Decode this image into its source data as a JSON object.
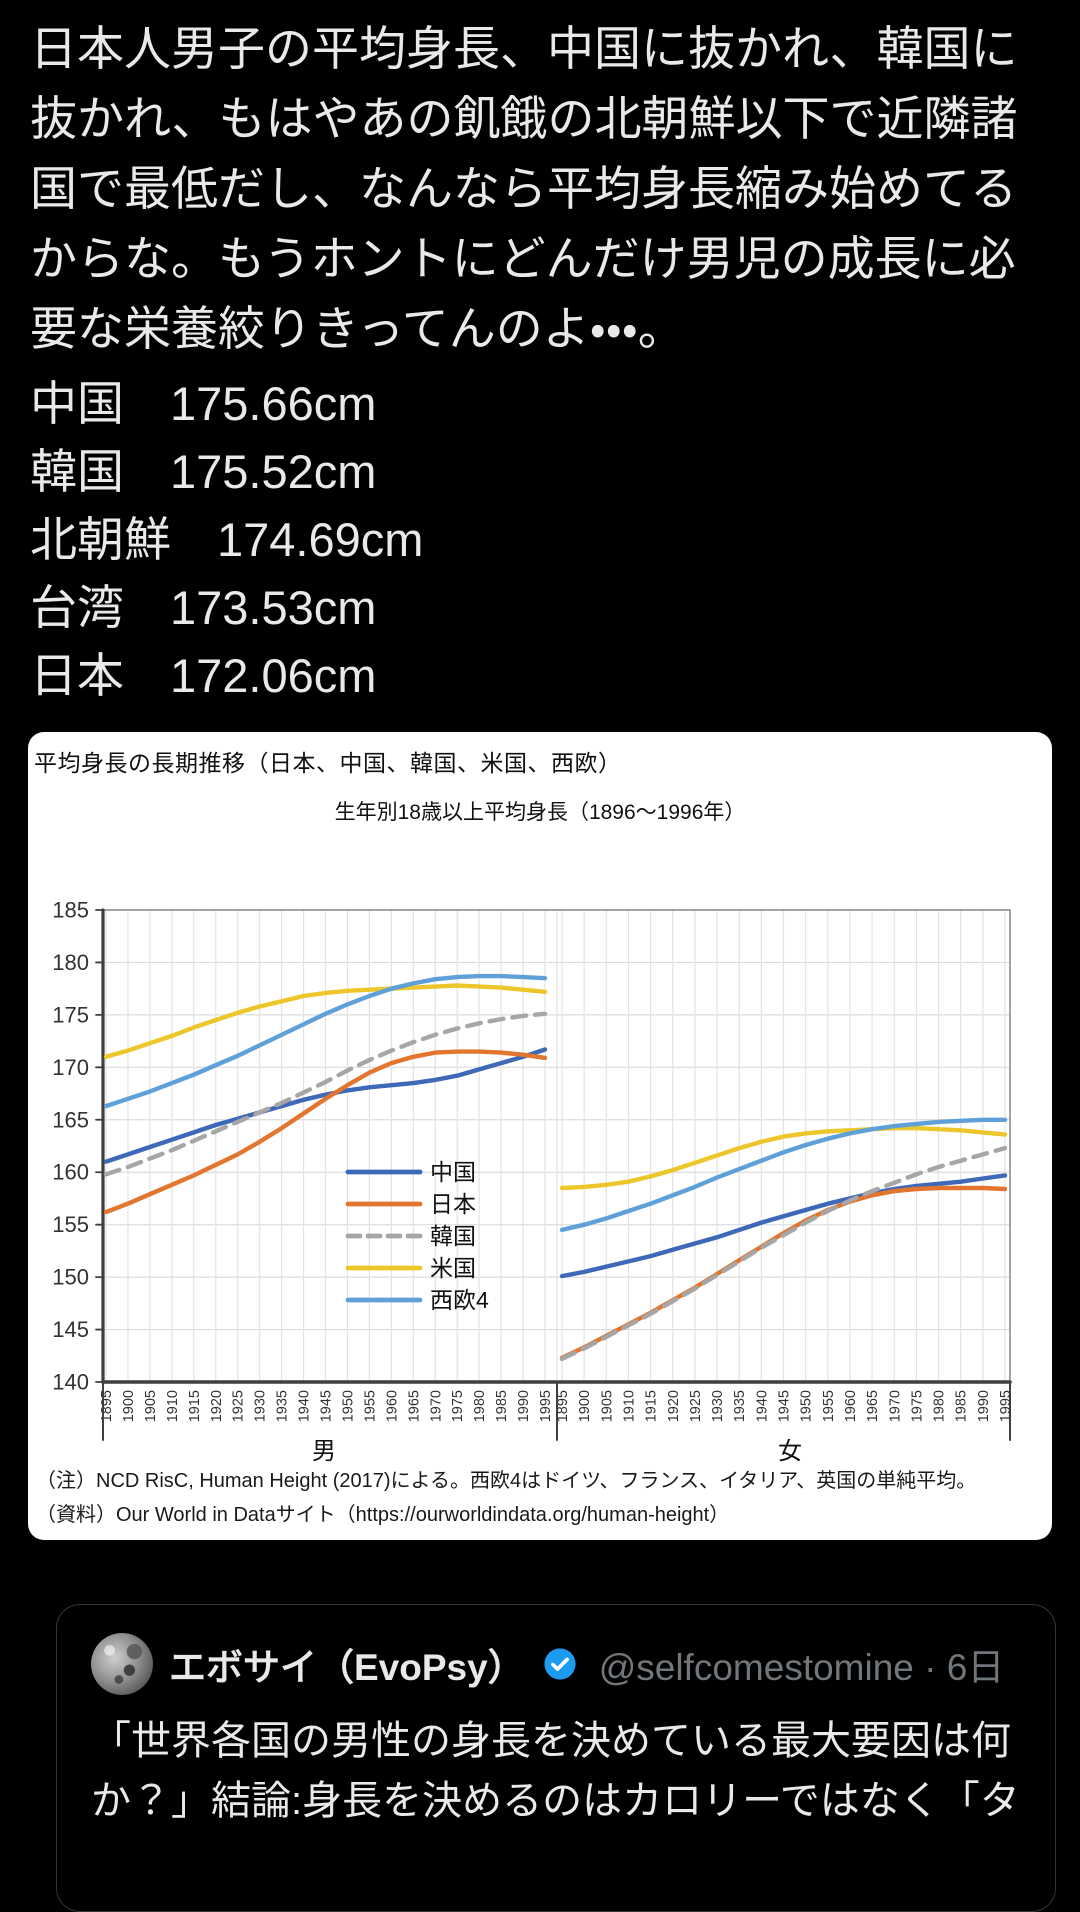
{
  "main_tweet": {
    "text": "日本人男子の平均身長、中国に抜かれ、韓国に抜かれ、もはやあの飢餓の北朝鮮以下で近隣諸国で最低だし、なんなら平均身長縮み始めてるからな。もうホントにどんだけ男児の成長に必要な栄養絞りきってんのよ・・・。",
    "height_list": [
      {
        "country": "中国",
        "value": "175.66cm"
      },
      {
        "country": "韓国",
        "value": "175.52cm"
      },
      {
        "country": "北朝鮮",
        "value": "174.69cm"
      },
      {
        "country": "台湾",
        "value": "173.53cm"
      },
      {
        "country": "日本",
        "value": "172.06cm"
      }
    ]
  },
  "chart": {
    "card_title": "平均身長の長期推移（日本、中国、韓国、米国、西欧）",
    "note1": "（注）NCD RisC, Human Height (2017)による。西欧4はドイツ、フランス、イタリア、英国の単純平均。",
    "note2": "（資料）Our World in Dataサイト（https://ourworldindata.org/human-height）"
  },
  "chart_data": {
    "type": "line",
    "title": "生年別18歳以上平均身長（1896～1996年）",
    "ylim": [
      140,
      185
    ],
    "ytick_step": 5,
    "grid": true,
    "legend_position": "inside-men-panel-lower-center",
    "x_years": [
      1895,
      1900,
      1905,
      1910,
      1915,
      1920,
      1925,
      1930,
      1935,
      1940,
      1945,
      1950,
      1955,
      1960,
      1965,
      1970,
      1975,
      1980,
      1985,
      1990,
      1995
    ],
    "panels": [
      {
        "label": "男",
        "series": [
          {
            "name": "中国",
            "color": "#3E68B8",
            "dash": false,
            "values": [
              161.0,
              161.7,
              162.4,
              163.1,
              163.8,
              164.5,
              165.1,
              165.7,
              166.3,
              166.9,
              167.4,
              167.8,
              168.1,
              168.3,
              168.5,
              168.8,
              169.2,
              169.8,
              170.4,
              171.0,
              171.7
            ]
          },
          {
            "name": "日本",
            "color": "#E2762E",
            "dash": false,
            "values": [
              156.2,
              157.0,
              157.9,
              158.8,
              159.7,
              160.7,
              161.7,
              162.9,
              164.2,
              165.6,
              167.0,
              168.3,
              169.5,
              170.4,
              171.0,
              171.4,
              171.5,
              171.5,
              171.4,
              171.2,
              170.9
            ]
          },
          {
            "name": "韓国",
            "color": "#A6A6A6",
            "dash": true,
            "values": [
              159.8,
              160.5,
              161.3,
              162.1,
              163.0,
              163.9,
              164.8,
              165.7,
              166.6,
              167.6,
              168.6,
              169.7,
              170.7,
              171.6,
              172.4,
              173.1,
              173.7,
              174.2,
              174.6,
              174.9,
              175.1
            ]
          },
          {
            "name": "米国",
            "color": "#EDC62C",
            "dash": false,
            "values": [
              171.0,
              171.6,
              172.3,
              173.0,
              173.8,
              174.5,
              175.2,
              175.8,
              176.3,
              176.8,
              177.1,
              177.3,
              177.4,
              177.5,
              177.6,
              177.7,
              177.8,
              177.7,
              177.6,
              177.4,
              177.2
            ]
          },
          {
            "name": "西欧4",
            "color": "#5FA0D8",
            "dash": false,
            "values": [
              166.3,
              167.0,
              167.7,
              168.5,
              169.3,
              170.2,
              171.1,
              172.1,
              173.1,
              174.1,
              175.1,
              176.0,
              176.8,
              177.5,
              178.0,
              178.4,
              178.6,
              178.7,
              178.7,
              178.6,
              178.5
            ]
          }
        ]
      },
      {
        "label": "女",
        "series": [
          {
            "name": "中国",
            "color": "#3E68B8",
            "dash": false,
            "values": [
              150.1,
              150.5,
              151.0,
              151.5,
              152.0,
              152.6,
              153.2,
              153.8,
              154.5,
              155.2,
              155.8,
              156.4,
              157.0,
              157.5,
              158.0,
              158.4,
              158.7,
              158.9,
              159.1,
              159.4,
              159.7
            ]
          },
          {
            "name": "日本",
            "color": "#E2762E",
            "dash": false,
            "values": [
              142.3,
              143.3,
              144.4,
              145.5,
              146.6,
              147.8,
              149.0,
              150.3,
              151.6,
              152.9,
              154.2,
              155.4,
              156.4,
              157.2,
              157.8,
              158.2,
              158.4,
              158.5,
              158.5,
              158.5,
              158.4
            ]
          },
          {
            "name": "韓国",
            "color": "#A6A6A6",
            "dash": true,
            "values": [
              142.2,
              143.2,
              144.3,
              145.4,
              146.5,
              147.7,
              148.9,
              150.2,
              151.5,
              152.8,
              154.0,
              155.2,
              156.3,
              157.3,
              158.2,
              159.0,
              159.8,
              160.5,
              161.1,
              161.7,
              162.3
            ]
          },
          {
            "name": "米国",
            "color": "#EDC62C",
            "dash": false,
            "values": [
              158.5,
              158.6,
              158.8,
              159.1,
              159.6,
              160.2,
              160.9,
              161.6,
              162.3,
              162.9,
              163.4,
              163.7,
              163.9,
              164.0,
              164.1,
              164.2,
              164.2,
              164.1,
              164.0,
              163.8,
              163.6
            ]
          },
          {
            "name": "西欧4",
            "color": "#5FA0D8",
            "dash": false,
            "values": [
              154.5,
              155.0,
              155.6,
              156.3,
              157.0,
              157.8,
              158.6,
              159.5,
              160.3,
              161.1,
              161.9,
              162.6,
              163.2,
              163.7,
              164.1,
              164.4,
              164.6,
              164.8,
              164.9,
              165.0,
              165.0
            ]
          }
        ]
      }
    ]
  },
  "quoted_tweet": {
    "display_name": "エボサイ（EvoPsy）",
    "handle_time": "@selfcomestomine · 6日",
    "text": "「世界各国の男性の身長を決めている最大要因は何か？」結論:身長を決めるのはカロリーではなく「タ"
  },
  "colors": {
    "background": "#000000",
    "text_primary": "#e7e9ea",
    "text_secondary": "#71767b",
    "verified_badge": "#1d9bf0"
  }
}
